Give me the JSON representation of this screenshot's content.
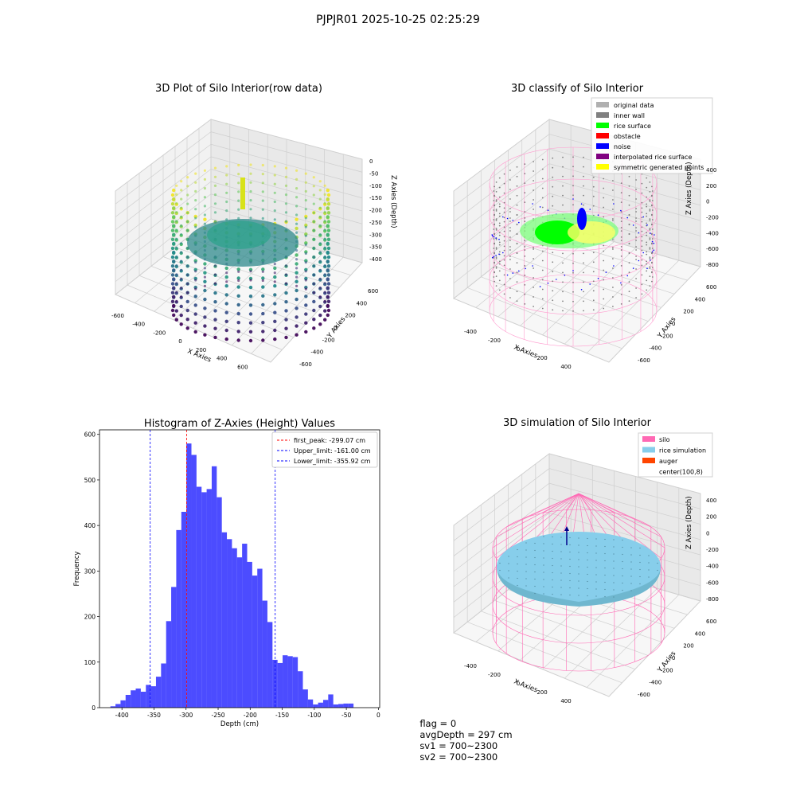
{
  "suptitle": "PJPJR01 2025-10-25 02:25:29",
  "panels": {
    "raw": {
      "title": "3D Plot of Silo Interior(row data)",
      "xlabel": "X Axies",
      "ylabel": "Y Axies",
      "zlabel": "Z Axies (Depth)",
      "xticks": [
        "-600",
        "-400",
        "-200",
        "0",
        "200",
        "400",
        "600",
        "800"
      ],
      "yticks": [
        "600",
        "400",
        "200",
        "0",
        "-200",
        "-400",
        "-600"
      ],
      "zticks": [
        "0",
        "-50",
        "-100",
        "-150",
        "-200",
        "-250",
        "-300",
        "-350",
        "-400"
      ]
    },
    "classify": {
      "title": "3D classify of Silo Interior",
      "xlabel": "X Axies",
      "ylabel": "Y Axies",
      "zlabel": "Z Axies (Depth)",
      "xticks": [
        "-400",
        "-200",
        "0",
        "200",
        "400",
        "600"
      ],
      "yticks": [
        "600",
        "400",
        "200",
        "0",
        "-200",
        "-400",
        "-600"
      ],
      "zticks": [
        "400",
        "200",
        "0",
        "-200",
        "-400",
        "-600",
        "-800"
      ],
      "legend": [
        {
          "label": "original data",
          "color": "#b0b0b0"
        },
        {
          "label": "inner wall",
          "color": "#808080"
        },
        {
          "label": "rice surface",
          "color": "#00ff00"
        },
        {
          "label": "obstacle",
          "color": "#ff0000"
        },
        {
          "label": "noise",
          "color": "#0000ff"
        },
        {
          "label": "interpolated rice surface",
          "color": "#800080"
        },
        {
          "label": "symmetric generated points",
          "color": "#ffff00"
        }
      ]
    },
    "simulation": {
      "title": "3D simulation of Silo Interior",
      "xlabel": "X Axies",
      "ylabel": "Y Axies",
      "zlabel": "Z Axies (Depth)",
      "xticks": [
        "-400",
        "-200",
        "0",
        "200",
        "400",
        "600"
      ],
      "yticks": [
        "600",
        "400",
        "200",
        "0",
        "-200",
        "-400",
        "-600"
      ],
      "zticks": [
        "400",
        "200",
        "0",
        "-200",
        "-400",
        "-600",
        "-800"
      ],
      "legend": [
        {
          "label": "silo",
          "color": "#ff69b4"
        },
        {
          "label": "rice simulation",
          "color": "#87ceeb"
        },
        {
          "label": "auger",
          "color": "#ff4500"
        },
        {
          "label": "center(100,8)",
          "color": ""
        }
      ]
    }
  },
  "status": {
    "flag": "flag = 0",
    "avg_depth": "avgDepth = 297 cm",
    "sv1": "sv1 = 700~2300",
    "sv2": "sv2 = 700~2300"
  },
  "colors": {
    "bars": "#0000ff",
    "first_peak_line": "#ff0000",
    "limit_lines": "#0000ff",
    "silo_wire": "#ff69b4",
    "rice_fill": "#87ceeb"
  },
  "chart_data": [
    {
      "type": "bar",
      "title": "Histogram of Z-Axies (Height) Values",
      "xlabel": "Depth (cm)",
      "ylabel": "Frequency",
      "xlim": [
        -435,
        2
      ],
      "ylim": [
        0,
        610
      ],
      "xticks": [
        -400,
        -350,
        -300,
        -250,
        -200,
        -150,
        -100,
        -50,
        0
      ],
      "yticks": [
        0,
        100,
        200,
        300,
        400,
        500,
        600
      ],
      "bin_start": -418,
      "bin_width": 7.9,
      "values": [
        3,
        8,
        16,
        28,
        38,
        42,
        35,
        50,
        47,
        68,
        97,
        190,
        265,
        390,
        430,
        580,
        555,
        485,
        473,
        480,
        530,
        462,
        385,
        370,
        350,
        330,
        360,
        320,
        290,
        305,
        235,
        188,
        105,
        98,
        115,
        113,
        111,
        80,
        40,
        18,
        7,
        11,
        17,
        29,
        7,
        8,
        9,
        9
      ],
      "vlines": [
        {
          "label": "first_peak: -299.07 cm",
          "x": -299.07,
          "color": "#ff0000"
        },
        {
          "label": "Upper_limit: -161.00 cm",
          "x": -161.0,
          "color": "#0000ff"
        },
        {
          "label": "Lower_limit: -355.92 cm",
          "x": -355.92,
          "color": "#0000ff"
        }
      ],
      "legend_position": "top-right",
      "grid": false
    }
  ]
}
